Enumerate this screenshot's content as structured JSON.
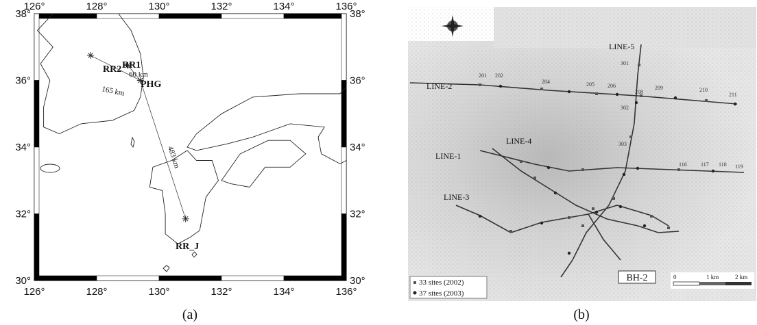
{
  "panel_a": {
    "caption": "(a)",
    "lon_ticks": [
      "126°",
      "128°",
      "130°",
      "132°",
      "134°",
      "136°"
    ],
    "lat_ticks": [
      "38°",
      "36°",
      "34°",
      "32°",
      "30°"
    ],
    "stations": [
      "RR1",
      "RR2",
      "PHG",
      "RR_J"
    ],
    "distances": [
      "60 km",
      "165 km",
      "483 km"
    ]
  },
  "panel_b": {
    "caption": "(b)",
    "lines": [
      "LINE-1",
      "LINE-2",
      "LINE-3",
      "LINE-4",
      "LINE-5"
    ],
    "borehole": "BH-2",
    "legend": [
      "33 sites (2002)",
      "37 sites (2003)"
    ],
    "scale": [
      "0",
      "1 km",
      "2 km"
    ],
    "sites": [
      "201",
      "202",
      "204",
      "205",
      "206",
      "208",
      "209",
      "210",
      "211",
      "301",
      "302",
      "303",
      "116",
      "117",
      "118",
      "119"
    ]
  }
}
